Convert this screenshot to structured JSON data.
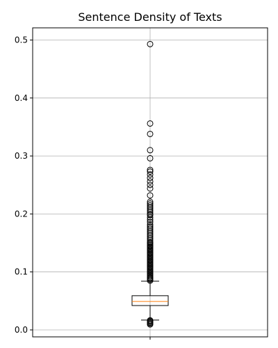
{
  "chart_data": {
    "type": "box",
    "title": "Sentence Density of Texts",
    "xlabel": "",
    "ylabel": "",
    "ylim": [
      -0.012,
      0.521
    ],
    "yticks": [
      0.0,
      0.1,
      0.2,
      0.3,
      0.4,
      0.5
    ],
    "ytick_labels": [
      "0.0",
      "0.1",
      "0.2",
      "0.3",
      "0.4",
      "0.5"
    ],
    "grid": true,
    "box": {
      "q1": 0.042,
      "median": 0.049,
      "q3": 0.059,
      "whisker_low": 0.017,
      "whisker_high": 0.084
    },
    "outliers_high": [
      0.085,
      0.087,
      0.089,
      0.09,
      0.092,
      0.094,
      0.096,
      0.098,
      0.1,
      0.102,
      0.104,
      0.106,
      0.108,
      0.11,
      0.112,
      0.114,
      0.116,
      0.118,
      0.12,
      0.122,
      0.124,
      0.126,
      0.128,
      0.13,
      0.132,
      0.134,
      0.136,
      0.138,
      0.14,
      0.142,
      0.144,
      0.146,
      0.148,
      0.15,
      0.152,
      0.155,
      0.158,
      0.161,
      0.164,
      0.167,
      0.17,
      0.173,
      0.176,
      0.179,
      0.182,
      0.186,
      0.19,
      0.194,
      0.198,
      0.2,
      0.203,
      0.206,
      0.209,
      0.212,
      0.215,
      0.218,
      0.221,
      0.232,
      0.244,
      0.25,
      0.256,
      0.262,
      0.268,
      0.273,
      0.276,
      0.296,
      0.31,
      0.338,
      0.356,
      0.493
    ],
    "outliers_low": [
      0.0095,
      0.011,
      0.0125,
      0.014,
      0.0155,
      0.0165
    ]
  },
  "colors": {
    "box": "#000000",
    "median": "#ff7f0e",
    "grid": "#b0b0b0",
    "outlier_edge": "#000000"
  }
}
